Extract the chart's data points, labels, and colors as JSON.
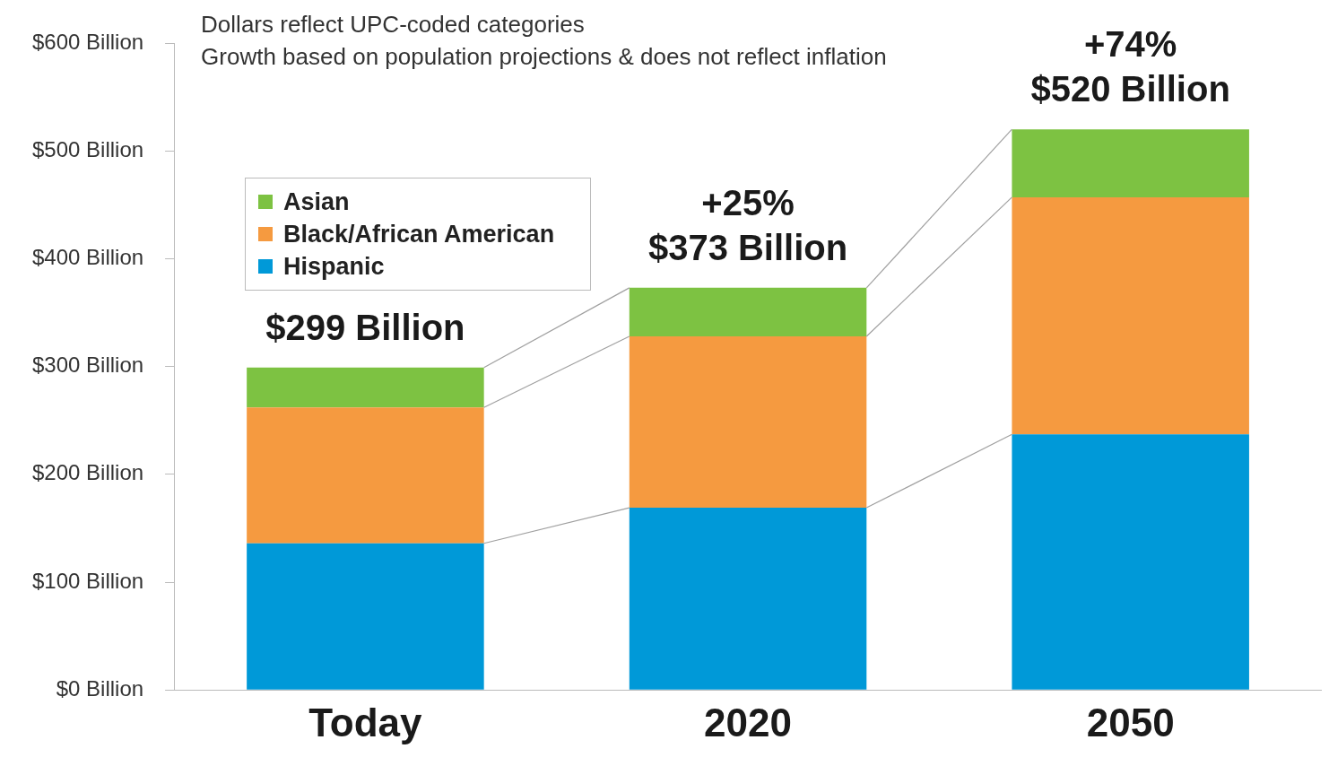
{
  "chart_data": {
    "type": "bar",
    "stacked": true,
    "categories": [
      "Today",
      "2020",
      "2050"
    ],
    "series": [
      {
        "name": "Hispanic",
        "color": "#0099d8",
        "values": [
          136,
          169,
          237
        ]
      },
      {
        "name": "Black/African American",
        "color": "#f59a40",
        "values": [
          126,
          159,
          220
        ]
      },
      {
        "name": "Asian",
        "color": "#7dc242",
        "values": [
          37,
          45,
          63
        ]
      }
    ],
    "ylim": [
      0,
      600
    ],
    "yticks": [
      {
        "value": 0,
        "label": "$0 Billion"
      },
      {
        "value": 100,
        "label": "$100 Billion"
      },
      {
        "value": 200,
        "label": "$200 Billion"
      },
      {
        "value": 300,
        "label": "$300 Billion"
      },
      {
        "value": 400,
        "label": "$400 Billion"
      },
      {
        "value": 500,
        "label": "$500 Billion"
      },
      {
        "value": 600,
        "label": "$600 Billion"
      }
    ],
    "grid": false,
    "legend": "top left",
    "totals": [
      "$299 Billion",
      "$373 Billion",
      "$520 Billion"
    ],
    "annotations": [
      "Dollars reflect UPC-coded categories",
      "Growth based on population projections & does not reflect inflation",
      {
        "text": "+25%",
        "x": "2020",
        "y": 373
      },
      {
        "text": "+74%",
        "x": "2050",
        "y": 520
      }
    ]
  }
}
